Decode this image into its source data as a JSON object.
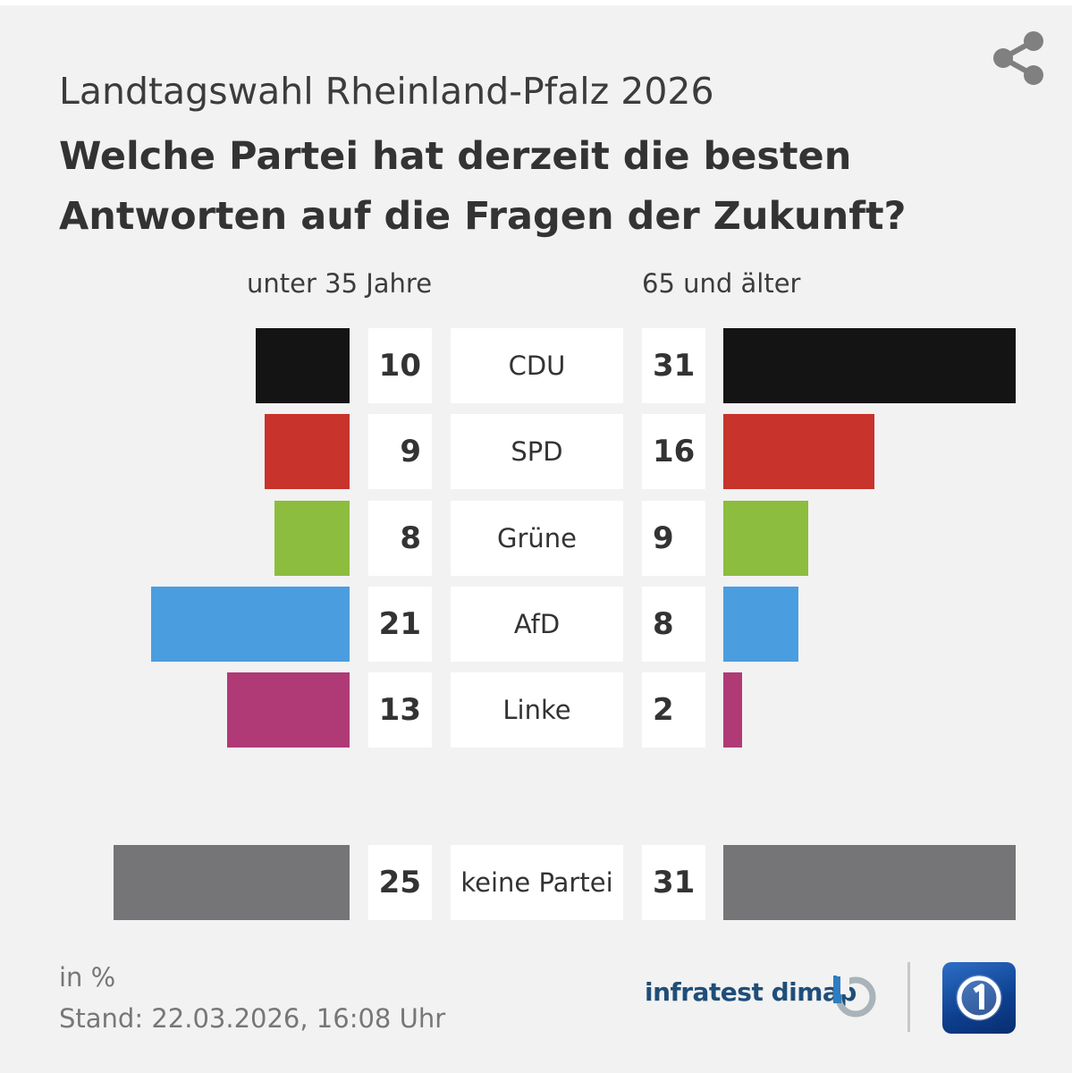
{
  "header": {
    "supertitle": "Landtagswahl Rheinland-Pfalz 2026",
    "title": "Welche Partei hat derzeit die besten Antworten auf die Fragen der Zukunft?"
  },
  "chart_data": {
    "type": "bar",
    "layout": "diverging-horizontal",
    "groups": [
      "unter 35 Jahre",
      "65 und älter"
    ],
    "categories": [
      "CDU",
      "SPD",
      "Grüne",
      "AfD",
      "Linke",
      "keine Partei"
    ],
    "series": [
      {
        "name": "unter 35 Jahre",
        "values": [
          10,
          9,
          8,
          21,
          13,
          25
        ]
      },
      {
        "name": "65 und älter",
        "values": [
          31,
          16,
          9,
          8,
          2,
          31
        ]
      }
    ],
    "colors": [
      "#141414",
      "#c8332b",
      "#8cbd3e",
      "#4a9ee0",
      "#b03a76",
      "#757577"
    ],
    "unit": "in %"
  },
  "footer": {
    "unit_label": "in %",
    "stand": "Stand:  22.03.2026, 16:08 Uhr",
    "source": "infratest dimap"
  },
  "icons": {
    "share": "share-icon",
    "infratest": "infratest-dimap-logo",
    "broadcaster": "tagesschau-logo"
  }
}
